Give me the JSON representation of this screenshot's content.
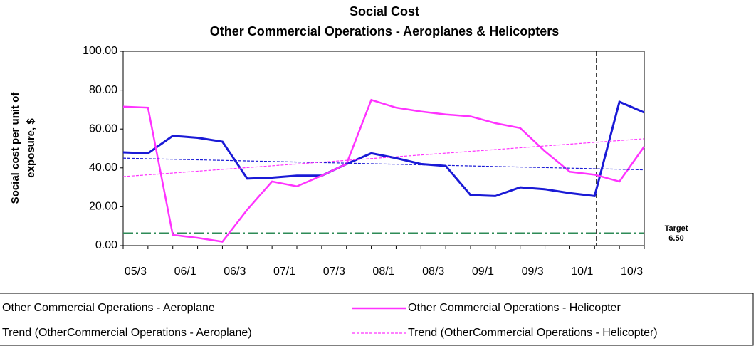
{
  "chart_data": {
    "type": "line",
    "title": "Social Cost",
    "subtitle": "Other Commercial Operations - Aeroplanes & Helicopters",
    "y_label": [
      "Social cost per unit of",
      "exposure, $"
    ],
    "categories": [
      "05/3",
      null,
      "06/1",
      null,
      "06/3",
      null,
      "07/1",
      null,
      "07/3",
      null,
      "08/1",
      null,
      "08/3",
      null,
      "09/1",
      null,
      "09/3",
      null,
      "10/1",
      null,
      "10/3",
      null
    ],
    "series": [
      {
        "name": "Other Commercial Operations - Aeroplane",
        "color": "#1a1ad6",
        "width": 3,
        "dash": "solid",
        "values": [
          48,
          47.5,
          56.5,
          55.5,
          53.5,
          34.5,
          35,
          36,
          36,
          42,
          47.5,
          45,
          42,
          41,
          26,
          25.5,
          30,
          29,
          27,
          25.5,
          74,
          68.5
        ]
      },
      {
        "name": "Other Commercial Operations - Helicopter",
        "color": "#ff33ff",
        "width": 2.5,
        "dash": "solid",
        "values": [
          71.5,
          71,
          5.5,
          4,
          2,
          18.5,
          33,
          30.5,
          36,
          42,
          75,
          71,
          69,
          67.5,
          66.5,
          63,
          60.5,
          48.5,
          38,
          36.5,
          33,
          51
        ]
      },
      {
        "name": "Trend (OtherCommercial Operations - Aeroplane)",
        "color": "#1a1ad6",
        "width": 1.2,
        "dash": "dashed",
        "values": [
          45,
          44.71,
          44.43,
          44.14,
          43.86,
          43.57,
          43.29,
          43,
          42.71,
          42.43,
          42.14,
          41.86,
          41.57,
          41.29,
          41,
          40.71,
          40.43,
          40.14,
          39.86,
          39.57,
          39.29,
          39
        ]
      },
      {
        "name": "Trend (OtherCommercial Operations - Helicopter)",
        "color": "#ff33ff",
        "width": 1.2,
        "dash": "dashed",
        "values": [
          35.5,
          36.43,
          37.36,
          38.29,
          39.21,
          40.14,
          41.07,
          42,
          42.93,
          43.86,
          44.79,
          45.71,
          46.64,
          47.57,
          48.5,
          49.43,
          50.36,
          51.29,
          52.21,
          53.14,
          54.07,
          55
        ]
      }
    ],
    "target": {
      "label": "Target",
      "value": 6.5,
      "value_label": "6.50",
      "color": "#2e8b57"
    },
    "ylim": [
      0,
      100
    ],
    "yticks": [
      {
        "value": 0,
        "label": "0.00"
      },
      {
        "value": 20,
        "label": "20.00"
      },
      {
        "value": 40,
        "label": "40.00"
      },
      {
        "value": 60,
        "label": "60.00"
      },
      {
        "value": 80,
        "label": "80.00"
      },
      {
        "value": 100,
        "label": "100.00"
      }
    ],
    "grid": false
  }
}
